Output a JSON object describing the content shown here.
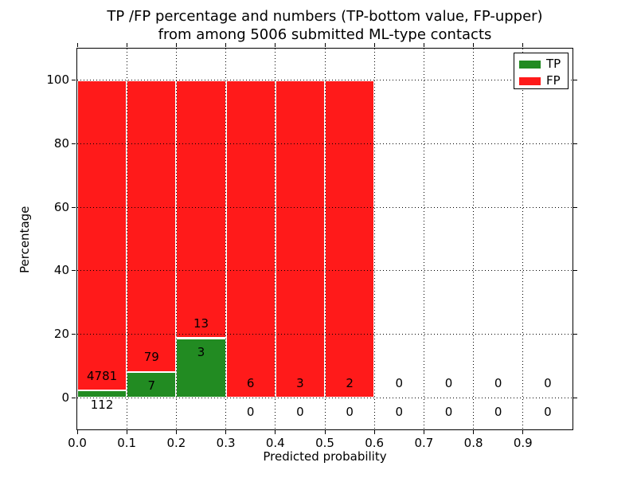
{
  "figure": {
    "title_line1": "TP /FP percentage and numbers (TP-bottom value, FP-upper)",
    "title_line2": "from among 5006 submitted ML-type contacts",
    "xlabel": "Predicted probability",
    "ylabel": "Percentage"
  },
  "legend": {
    "position": "upper right",
    "items": [
      {
        "label": "TP",
        "color": "#228b22"
      },
      {
        "label": "FP",
        "color": "#ff1a1a"
      }
    ]
  },
  "colors": {
    "tp_green": "#228b22",
    "fp_red": "#ff1a1a",
    "bar_edge": "#ffffff",
    "axes_and_text": "#000000",
    "grid": "#000000",
    "background": "#ffffff"
  },
  "chart_data": {
    "type": "bar",
    "stacked": true,
    "normalized": "each non-empty bin stacks to 100 percent",
    "title": "TP /FP percentage and numbers (TP-bottom value, FP-upper) from among 5006 submitted ML-type contacts",
    "xlabel": "Predicted probability",
    "ylabel": "Percentage",
    "total_contacts": 5006,
    "xlim": [
      0.0,
      1.0
    ],
    "ylim": [
      -10,
      110
    ],
    "x_ticks": [
      "0.0",
      "0.1",
      "0.2",
      "0.3",
      "0.4",
      "0.5",
      "0.6",
      "0.7",
      "0.8",
      "0.9"
    ],
    "y_ticks": [
      0,
      20,
      40,
      60,
      80,
      100
    ],
    "grid": "dotted black, drawn above bars",
    "legend_position": "upper right",
    "bin_width": 0.1,
    "bin_starts": [
      0.0,
      0.1,
      0.2,
      0.3,
      0.4,
      0.5,
      0.6,
      0.7,
      0.8,
      0.9
    ],
    "series": [
      {
        "name": "TP",
        "color": "#228b22",
        "counts": [
          112,
          7,
          3,
          0,
          0,
          0,
          0,
          0,
          0,
          0
        ]
      },
      {
        "name": "FP",
        "color": "#ff1a1a",
        "counts": [
          4781,
          79,
          13,
          6,
          3,
          2,
          0,
          0,
          0,
          0
        ]
      }
    ],
    "tp_percent_by_bin": [
      2.3,
      8.1,
      18.8,
      0,
      0,
      0,
      null,
      null,
      null,
      null
    ],
    "fp_percent_by_bin": [
      97.7,
      91.9,
      81.2,
      100,
      100,
      100,
      null,
      null,
      null,
      null
    ],
    "annotation_rule": "FP count printed above green top, TP count printed below green top; bins past 0.6 have no bars, only 0/0 labels"
  }
}
